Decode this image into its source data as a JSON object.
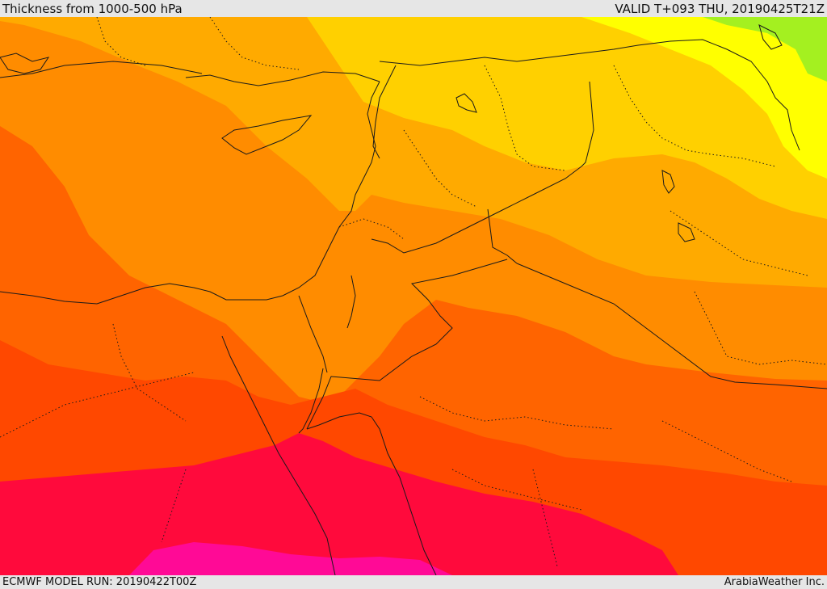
{
  "header": {
    "title": "Thickness from 1000-500 hPa",
    "valid": "VALID T+093 THU, 20190425T21Z"
  },
  "footer": {
    "model_run": "ECMWF MODEL RUN: 20190422T00Z",
    "credit": "ArabiaWeather Inc."
  },
  "colors": {
    "band_yellow": "#ffff00",
    "band_green": "#a4f020",
    "band_amber": "#ffd000",
    "band_gold": "#ffaa00",
    "band_orange": "#ff8c00",
    "band_dark_orange": "#ff6400",
    "band_red_orange": "#ff4800",
    "band_crimson": "#ff0a3c",
    "band_magenta": "#ff0a96",
    "borders": "#1a1a1a"
  }
}
